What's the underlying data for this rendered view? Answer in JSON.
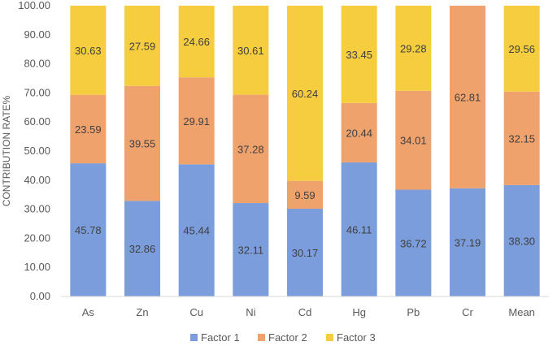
{
  "chart_data": {
    "type": "bar",
    "stacked": true,
    "categories": [
      "As",
      "Zn",
      "Cu",
      "Ni",
      "Cd",
      "Hg",
      "Pb",
      "Cr",
      "Mean"
    ],
    "series": [
      {
        "name": "Factor 1",
        "color": "#7b9ddb",
        "values": [
          45.78,
          32.86,
          45.44,
          32.11,
          30.17,
          46.11,
          36.72,
          37.19,
          38.3
        ],
        "labels": [
          "45.78",
          "32.86",
          "45.44",
          "32.11",
          "30.17",
          "46.11",
          "36.72",
          "37.19",
          "38.30"
        ]
      },
      {
        "name": "Factor 2",
        "color": "#f0a26d",
        "values": [
          23.59,
          39.55,
          29.91,
          37.28,
          9.59,
          20.44,
          34.01,
          62.81,
          32.15
        ],
        "labels": [
          "23.59",
          "39.55",
          "29.91",
          "37.28",
          "9.59",
          "20.44",
          "34.01",
          "62.81",
          "32.15"
        ]
      },
      {
        "name": "Factor 3",
        "color": "#f5cd3f",
        "values": [
          30.63,
          27.59,
          24.66,
          30.61,
          60.24,
          33.45,
          29.28,
          0,
          29.56
        ],
        "labels": [
          "30.63",
          "27.59",
          "24.66",
          "30.61",
          "60.24",
          "33.45",
          "29.28",
          "",
          "29.56"
        ]
      }
    ],
    "ylabel": "CONTRIBUTION RATE%",
    "ylim": [
      0,
      100
    ],
    "yticks": [
      "0.00",
      "10.00",
      "20.00",
      "30.00",
      "40.00",
      "50.00",
      "60.00",
      "70.00",
      "80.00",
      "90.00",
      "100.00"
    ],
    "legend_position": "bottom",
    "grid": false
  }
}
